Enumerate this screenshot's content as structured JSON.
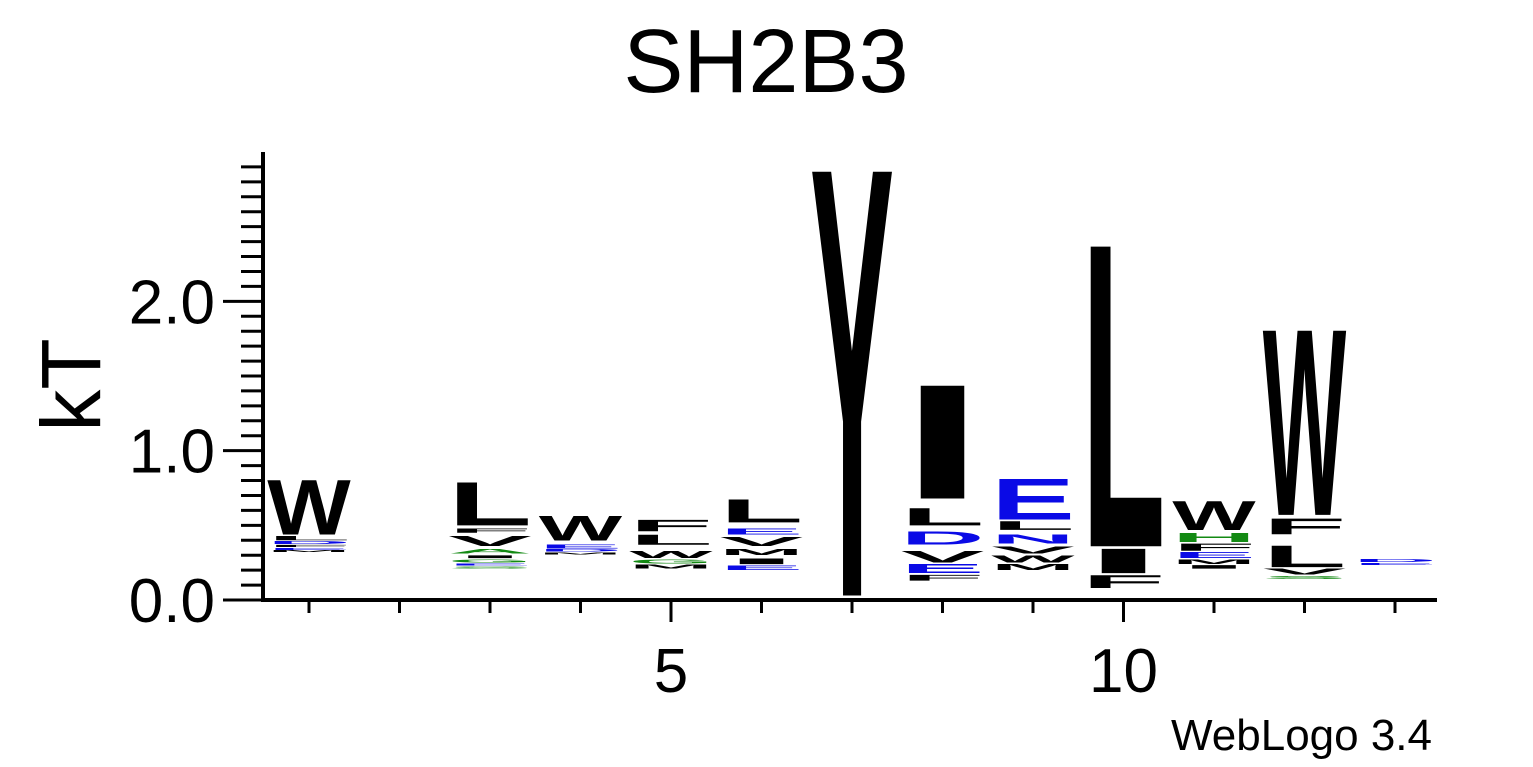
{
  "chart_data": {
    "type": "sequence-logo",
    "title": "SH2B3",
    "ylabel": "kT",
    "xlabel": "",
    "ylim": [
      0,
      3.0
    ],
    "yticks": [
      "0.0",
      "1.0",
      "2.0"
    ],
    "xticks": [
      "5",
      "10"
    ],
    "num_positions": 13,
    "footer": "WebLogo 3.4",
    "colors": {
      "black": "#000000",
      "blue": "#0a0ae6",
      "green": "#138a13"
    },
    "positions": [
      {
        "pos": 1,
        "letters": [
          {
            "char": "W",
            "base": 0.44,
            "top": 0.82,
            "color": "black"
          },
          {
            "char": "L",
            "base": 0.4,
            "top": 0.43,
            "color": "black"
          },
          {
            "char": "D",
            "base": 0.375,
            "top": 0.395,
            "color": "blue"
          },
          {
            "char": "F",
            "base": 0.355,
            "top": 0.37,
            "color": "black"
          },
          {
            "char": "E",
            "base": 0.335,
            "top": 0.35,
            "color": "blue"
          },
          {
            "char": "M",
            "base": 0.32,
            "top": 0.333,
            "color": "black"
          }
        ]
      },
      {
        "pos": 2,
        "letters": []
      },
      {
        "pos": 3,
        "letters": [
          {
            "char": "L",
            "base": 0.5,
            "top": 0.8,
            "color": "black"
          },
          {
            "char": "F",
            "base": 0.45,
            "top": 0.48,
            "color": "black"
          },
          {
            "char": "V",
            "base": 0.36,
            "top": 0.43,
            "color": "black"
          },
          {
            "char": "A",
            "base": 0.31,
            "top": 0.34,
            "color": "green"
          },
          {
            "char": "I",
            "base": 0.28,
            "top": 0.3,
            "color": "black"
          },
          {
            "char": "G",
            "base": 0.25,
            "top": 0.27,
            "color": "green"
          },
          {
            "char": "E",
            "base": 0.23,
            "top": 0.245,
            "color": "blue"
          },
          {
            "char": "S",
            "base": 0.21,
            "top": 0.225,
            "color": "green"
          }
        ]
      },
      {
        "pos": 4,
        "letters": [
          {
            "char": "W",
            "base": 0.4,
            "top": 0.57,
            "color": "black"
          },
          {
            "char": "E",
            "base": 0.345,
            "top": 0.37,
            "color": "blue"
          },
          {
            "char": "D",
            "base": 0.325,
            "top": 0.342,
            "color": "blue"
          },
          {
            "char": "M",
            "base": 0.305,
            "top": 0.32,
            "color": "black"
          }
        ]
      },
      {
        "pos": 5,
        "letters": [
          {
            "char": "F",
            "base": 0.46,
            "top": 0.54,
            "color": "black"
          },
          {
            "char": "L",
            "base": 0.37,
            "top": 0.44,
            "color": "black"
          },
          {
            "char": "W",
            "base": 0.28,
            "top": 0.33,
            "color": "black"
          },
          {
            "char": "G",
            "base": 0.245,
            "top": 0.27,
            "color": "green"
          },
          {
            "char": "M",
            "base": 0.21,
            "top": 0.235,
            "color": "black"
          }
        ]
      },
      {
        "pos": 6,
        "letters": [
          {
            "char": "L",
            "base": 0.52,
            "top": 0.68,
            "color": "black"
          },
          {
            "char": "E",
            "base": 0.44,
            "top": 0.48,
            "color": "blue"
          },
          {
            "char": "V",
            "base": 0.36,
            "top": 0.42,
            "color": "black"
          },
          {
            "char": "M",
            "base": 0.3,
            "top": 0.34,
            "color": "black"
          },
          {
            "char": "I",
            "base": 0.24,
            "top": 0.28,
            "color": "black"
          },
          {
            "char": "E",
            "base": 0.2,
            "top": 0.23,
            "color": "blue"
          }
        ]
      },
      {
        "pos": 7,
        "letters": [
          {
            "char": "Y",
            "base": 0.03,
            "top": 3.0,
            "color": "black"
          }
        ]
      },
      {
        "pos": 8,
        "letters": [
          {
            "char": "I",
            "base": 0.68,
            "top": 1.47,
            "color": "black"
          },
          {
            "char": "L",
            "base": 0.5,
            "top": 0.62,
            "color": "black"
          },
          {
            "char": "D",
            "base": 0.37,
            "top": 0.46,
            "color": "blue"
          },
          {
            "char": "V",
            "base": 0.25,
            "top": 0.33,
            "color": "black"
          },
          {
            "char": "E",
            "base": 0.18,
            "top": 0.24,
            "color": "blue"
          },
          {
            "char": "F",
            "base": 0.13,
            "top": 0.17,
            "color": "black"
          }
        ]
      },
      {
        "pos": 9,
        "letters": [
          {
            "char": "E",
            "base": 0.54,
            "top": 0.82,
            "color": "blue"
          },
          {
            "char": "L",
            "base": 0.47,
            "top": 0.53,
            "color": "black"
          },
          {
            "char": "N",
            "base": 0.38,
            "top": 0.44,
            "color": "blue"
          },
          {
            "char": "V",
            "base": 0.31,
            "top": 0.36,
            "color": "black"
          },
          {
            "char": "W",
            "base": 0.25,
            "top": 0.3,
            "color": "black"
          },
          {
            "char": "M",
            "base": 0.2,
            "top": 0.24,
            "color": "black"
          }
        ]
      },
      {
        "pos": 10,
        "letters": [
          {
            "char": "L",
            "base": 0.36,
            "top": 2.46,
            "color": "black"
          },
          {
            "char": "I",
            "base": 0.18,
            "top": 0.35,
            "color": "black"
          },
          {
            "char": "F",
            "base": 0.08,
            "top": 0.17,
            "color": "black"
          }
        ]
      },
      {
        "pos": 11,
        "letters": [
          {
            "char": "W",
            "base": 0.47,
            "top": 0.67,
            "color": "black"
          },
          {
            "char": "H",
            "base": 0.39,
            "top": 0.45,
            "color": "green"
          },
          {
            "char": "F",
            "base": 0.33,
            "top": 0.38,
            "color": "black"
          },
          {
            "char": "E",
            "base": 0.28,
            "top": 0.32,
            "color": "blue"
          },
          {
            "char": "M",
            "base": 0.24,
            "top": 0.27,
            "color": "black"
          },
          {
            "char": "I",
            "base": 0.21,
            "top": 0.235,
            "color": "black"
          }
        ]
      },
      {
        "pos": 12,
        "letters": [
          {
            "char": "W",
            "base": 0.57,
            "top": 1.86,
            "color": "black"
          },
          {
            "char": "F",
            "base": 0.44,
            "top": 0.55,
            "color": "black"
          },
          {
            "char": "L",
            "base": 0.22,
            "top": 0.37,
            "color": "black"
          },
          {
            "char": "V",
            "base": 0.17,
            "top": 0.21,
            "color": "black"
          },
          {
            "char": "S",
            "base": 0.14,
            "top": 0.16,
            "color": "green"
          }
        ]
      },
      {
        "pos": 13,
        "letters": [
          {
            "char": "D",
            "base": 0.255,
            "top": 0.275,
            "color": "blue"
          },
          {
            "char": "E",
            "base": 0.235,
            "top": 0.25,
            "color": "blue"
          }
        ]
      }
    ]
  }
}
